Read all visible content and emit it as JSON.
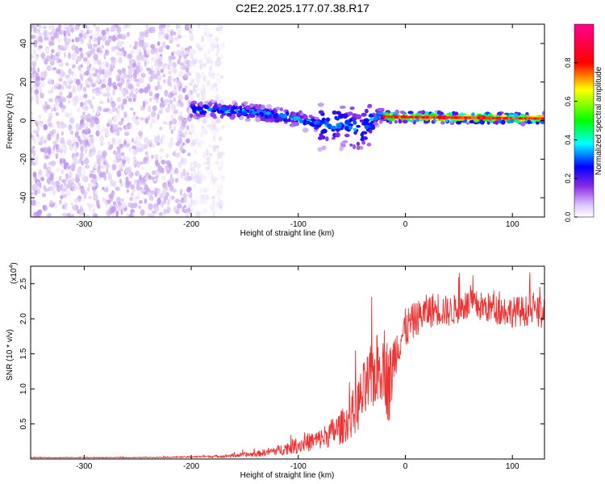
{
  "figure_title": "C2E2.2025.177.07.38.R17",
  "chart_data": [
    {
      "type": "heatmap",
      "xlabel": "Height of straight line (km)",
      "ylabel": "Frequency (Hz)",
      "xlim": [
        -350,
        130
      ],
      "ylim": [
        -50,
        50
      ],
      "x_ticks": [
        -300,
        -200,
        -100,
        0,
        100
      ],
      "x_tick_labels": [
        "-300",
        "-200",
        "-100",
        "0",
        "100"
      ],
      "y_ticks": [
        -40,
        -20,
        0,
        20,
        40
      ],
      "y_tick_labels": [
        "-40",
        "-20",
        "0",
        "20",
        "40"
      ],
      "colorbar": {
        "label": "Normalized spectral amplitude",
        "range": [
          0,
          1
        ],
        "ticks": [
          0.0,
          0.2,
          0.4,
          0.6,
          0.8
        ],
        "tick_labels": [
          "0.0",
          "0.2",
          "0.4",
          "0.6",
          "0.8"
        ],
        "colormap": [
          "#ffffff",
          "#c8a8f0",
          "#8a2be2",
          "#0000ff",
          "#00ffff",
          "#00ff00",
          "#ffff00",
          "#ff0000",
          "#ff0090"
        ]
      },
      "regions": [
        {
          "x_range": [
            -350,
            -200
          ],
          "freq_range": [
            -50,
            50
          ],
          "amplitude": 0.08,
          "pattern": "broadband noise"
        },
        {
          "x_range": [
            -200,
            -170
          ],
          "freq_range": [
            -50,
            50
          ],
          "amplitude": 0.03,
          "pattern": "sparse noise"
        },
        {
          "x_range": [
            -200,
            -20
          ],
          "ridge_freq": [
            [
              -200,
              6
            ],
            [
              -150,
              5
            ],
            [
              -110,
              2
            ],
            [
              -80,
              -2
            ],
            [
              -60,
              -1
            ],
            [
              -40,
              -5
            ],
            [
              -25,
              3
            ]
          ],
          "amplitude": 0.45,
          "pattern": "drifting ridge"
        },
        {
          "x_range": [
            -20,
            130
          ],
          "ridge_freq": [
            [
              -20,
              2
            ],
            [
              130,
              1
            ]
          ],
          "amplitude": 0.85,
          "pattern": "steady ridge"
        }
      ]
    },
    {
      "type": "line",
      "xlabel": "Height of straight line (km)",
      "ylabel": "SNR (10 * v/v)",
      "y_multiplier_label": "(x10",
      "y_multiplier_exp": "4",
      "xlim": [
        -350,
        130
      ],
      "ylim": [
        0,
        2.75
      ],
      "x_ticks": [
        -300,
        -200,
        -100,
        0,
        100
      ],
      "x_tick_labels": [
        "-300",
        "-200",
        "-100",
        "0",
        "100"
      ],
      "y_ticks": [
        0.5,
        1.0,
        1.5,
        2.0,
        2.5
      ],
      "y_tick_labels": [
        "0.5",
        "1.0",
        "1.5",
        "2.0",
        "2.5"
      ],
      "color": "#ee3333",
      "series": [
        {
          "x": [
            -350,
            -300,
            -250,
            -200,
            -170,
            -140,
            -120,
            -100,
            -80,
            -60,
            -50,
            -40,
            -30,
            -20,
            -15,
            -10,
            -5,
            0,
            10,
            20,
            30,
            40,
            60,
            80,
            100,
            120,
            130
          ],
          "y": [
            0.02,
            0.02,
            0.02,
            0.03,
            0.04,
            0.07,
            0.12,
            0.2,
            0.28,
            0.45,
            0.6,
            0.9,
            1.2,
            1.4,
            1.0,
            1.5,
            1.7,
            1.85,
            2.0,
            2.1,
            2.15,
            2.1,
            2.2,
            2.15,
            2.1,
            2.12,
            2.05
          ],
          "spread": [
            0.005,
            0.005,
            0.005,
            0.01,
            0.02,
            0.04,
            0.07,
            0.12,
            0.15,
            0.25,
            0.3,
            0.45,
            0.5,
            0.55,
            0.6,
            0.35,
            0.3,
            0.3,
            0.25,
            0.25,
            0.25,
            0.22,
            0.22,
            0.22,
            0.22,
            0.22,
            0.22
          ]
        }
      ]
    }
  ]
}
